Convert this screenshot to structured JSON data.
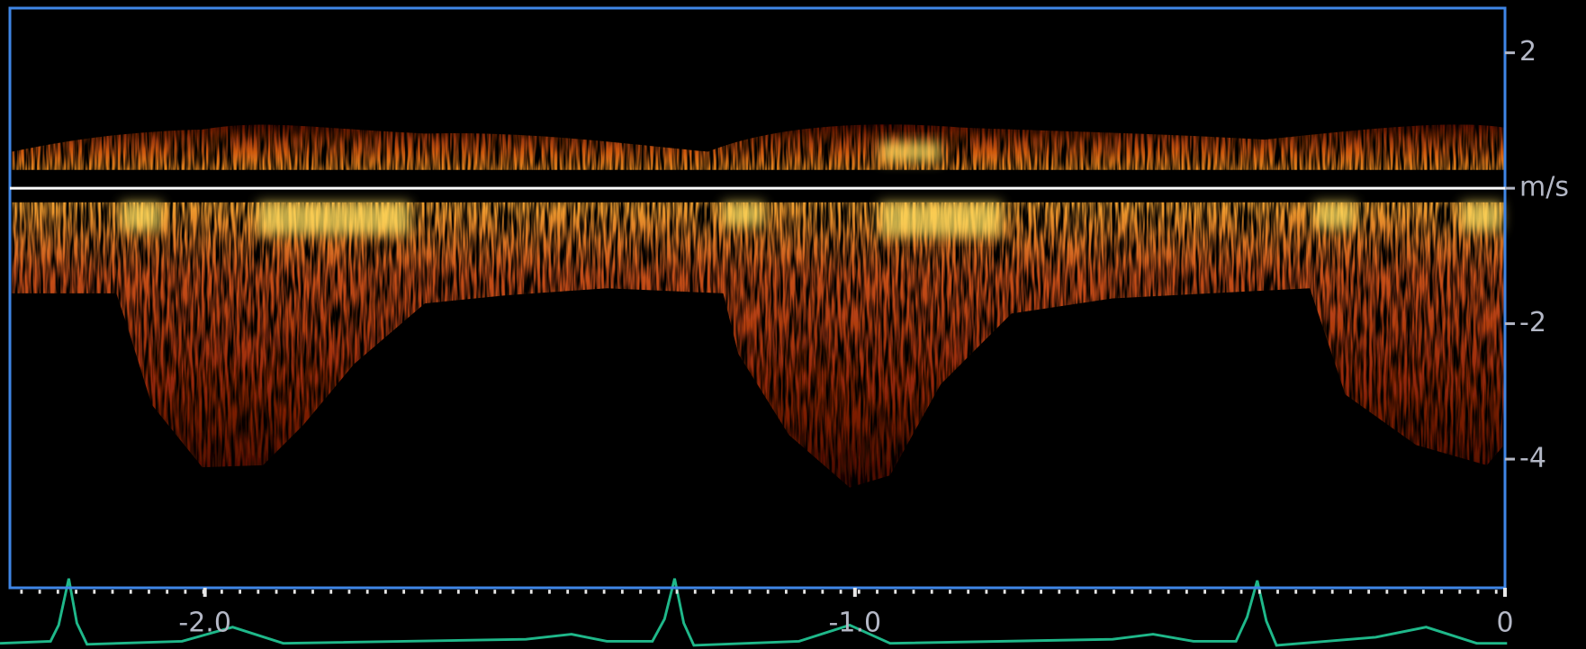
{
  "chart_data": {
    "type": "doppler",
    "ylim": [
      -5.9,
      2.66
    ],
    "yticks": [
      2,
      {
        "value": 0,
        "label": "m/s"
      },
      -2,
      -4
    ],
    "xlim": [
      -2.3,
      0
    ],
    "xticks": [
      {
        "value": -2,
        "label": "-2.0"
      },
      {
        "value": -1,
        "label": "-1.0"
      },
      0
    ],
    "frame_color": "#3f86e6",
    "baseline_color": "#ffffff",
    "ecg_color": "#1fb88a"
  }
}
